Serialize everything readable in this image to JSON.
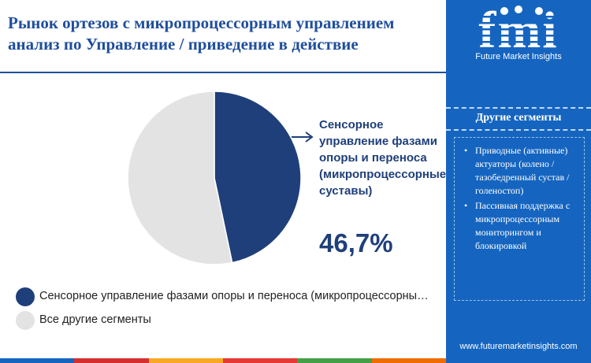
{
  "title": {
    "line1": "Рынок ортезов с микропроцессорным управлением",
    "line2": "анализ по Управление / приведение в действие"
  },
  "brand": {
    "logo_text": "fmi",
    "name": "Future Market Insights",
    "url": "www.futuremarketinsights.com"
  },
  "sidebar": {
    "heading": "Другие сегменты",
    "items": [
      "Приводные (активные) актуаторы (колено / тазобедренный сустав / голеностоп)",
      "Пассивная поддержка с микропроцессорным мониторингом и блокировкой"
    ]
  },
  "callout": {
    "label": "Сенсорное управление фазами опоры и переноса (микропроцессорные суставы)",
    "value": "46,7%"
  },
  "chart_data": {
    "type": "pie",
    "title": "Рынок ортезов с микропроцессорным управлением анализ по Управление / приведение в действие",
    "slices": [
      {
        "label": "Сенсорное управление фазами опоры и переноса (микропроцессорные суставы)",
        "value": 46.7,
        "color": "#1f3f7a"
      },
      {
        "label": "Все другие сегменты",
        "value": 53.3,
        "color": "#e3e3e3"
      }
    ],
    "legend_position": "bottom-left"
  },
  "legend": [
    {
      "label": "Сенсорное управление фазами опоры и переноса (микропроцессорные суставы)",
      "color": "#1f3f7a"
    },
    {
      "label": "Все другие сегменты",
      "color": "#e3e3e3"
    }
  ],
  "bottom_bar_colors": [
    "#1565c0",
    "#d32f2f",
    "#f9a825",
    "#e53935",
    "#43a047",
    "#ef6c00"
  ]
}
